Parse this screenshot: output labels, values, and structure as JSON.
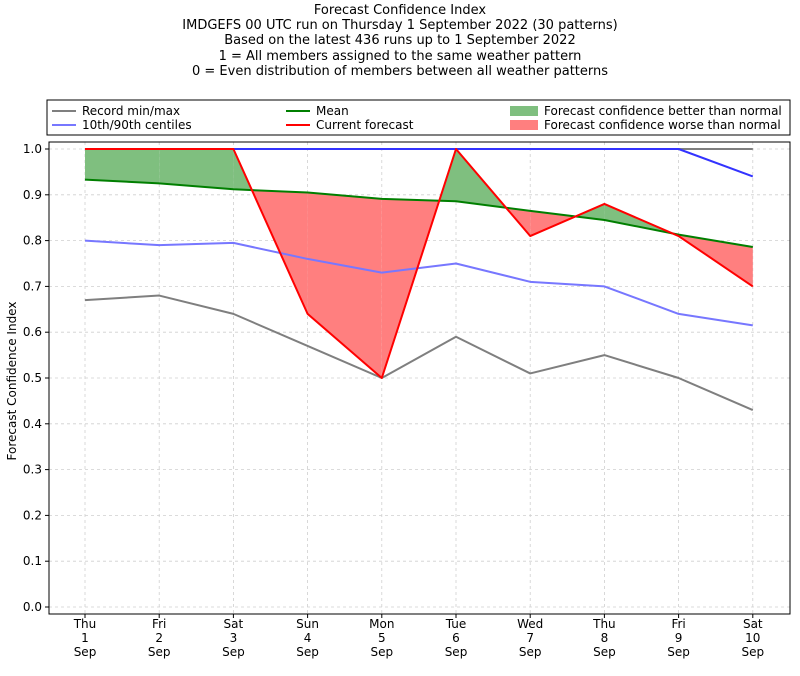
{
  "chart_data": {
    "type": "line",
    "title_lines": [
      "Forecast Confidence Index",
      "IMDGEFS 00 UTC run on Thursday 1 September 2022 (30 patterns)",
      "Based on the latest 436 runs up to 1 September 2022",
      "1 = All members assigned to the same weather pattern",
      "0 = Even distribution of members between all weather patterns"
    ],
    "ylabel": "Forecast Confidence Index",
    "xlabel": "",
    "ylim": [
      0.0,
      1.0
    ],
    "yticks": [
      "0.0",
      "0.1",
      "0.2",
      "0.3",
      "0.4",
      "0.5",
      "0.6",
      "0.7",
      "0.8",
      "0.9",
      "1.0"
    ],
    "grid": true,
    "legend_position": "top",
    "categories": [
      [
        "Thu",
        "1",
        "Sep"
      ],
      [
        "Fri",
        "2",
        "Sep"
      ],
      [
        "Sat",
        "3",
        "Sep"
      ],
      [
        "Sun",
        "4",
        "Sep"
      ],
      [
        "Mon",
        "5",
        "Sep"
      ],
      [
        "Tue",
        "6",
        "Sep"
      ],
      [
        "Wed",
        "7",
        "Sep"
      ],
      [
        "Thu",
        "8",
        "Sep"
      ],
      [
        "Fri",
        "9",
        "Sep"
      ],
      [
        "Sat",
        "10",
        "Sep"
      ]
    ],
    "series": [
      {
        "name": "Record min/max",
        "role": "record_min",
        "color": "#7f7f7f",
        "values": [
          0.67,
          0.68,
          0.64,
          0.57,
          0.5,
          0.59,
          0.51,
          0.55,
          0.5,
          0.43
        ]
      },
      {
        "role": "record_max",
        "color": "#7f7f7f",
        "values": [
          1.0,
          1.0,
          1.0,
          1.0,
          1.0,
          1.0,
          1.0,
          1.0,
          1.0,
          1.0
        ]
      },
      {
        "name": "10th/90th centiles",
        "role": "p10",
        "color": "#7777ff",
        "values": [
          0.8,
          0.79,
          0.795,
          0.76,
          0.73,
          0.75,
          0.71,
          0.7,
          0.64,
          0.615
        ]
      },
      {
        "role": "p90",
        "color": "#3333ff",
        "values": [
          1.0,
          1.0,
          1.0,
          1.0,
          1.0,
          1.0,
          1.0,
          1.0,
          1.0,
          0.94
        ]
      },
      {
        "name": "Mean",
        "role": "mean",
        "color": "#007f00",
        "values": [
          0.933,
          0.925,
          0.912,
          0.905,
          0.891,
          0.886,
          0.865,
          0.845,
          0.813,
          0.786
        ]
      },
      {
        "name": "Current forecast",
        "role": "current",
        "color": "#ff0000",
        "values": [
          1.0,
          1.0,
          1.0,
          0.64,
          0.5,
          1.0,
          0.81,
          0.88,
          0.81,
          0.7
        ]
      }
    ],
    "fills": [
      {
        "name": "Forecast confidence better than normal",
        "color": "#7fbf7f"
      },
      {
        "name": "Forecast confidence worse than normal",
        "color": "#ff7f7f"
      }
    ]
  }
}
